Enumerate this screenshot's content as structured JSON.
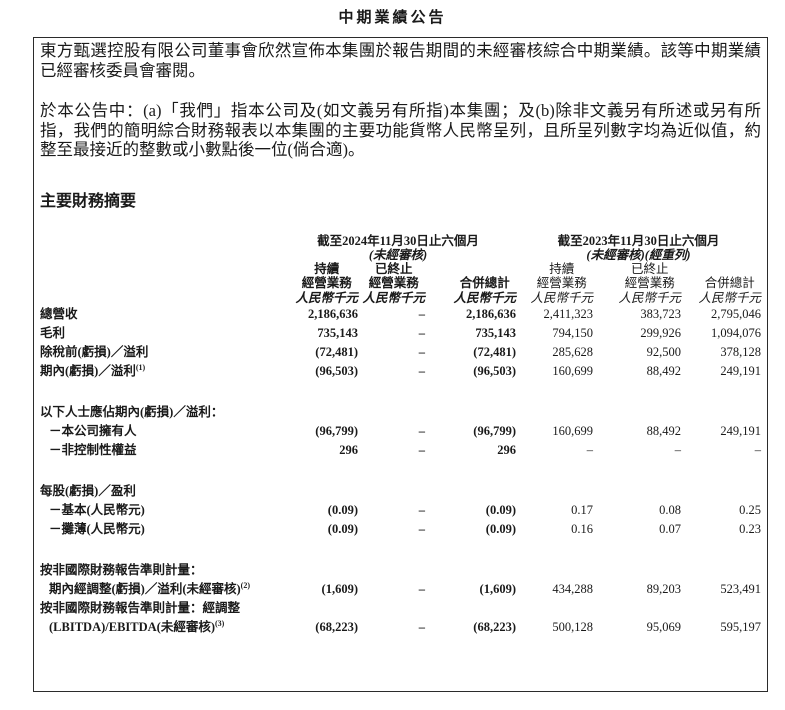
{
  "document": {
    "title": "中期業績公告",
    "paragraph1": "東方甄選控股有限公司董事會欣然宣佈本集團於報告期間的未經審核綜合中期業績。該等中期業績已經審核委員會審閱。",
    "paragraph2": "於本公告中：(a)「我們」指本公司及(如文義另有所指)本集團；及(b)除非文義另有所述或另有所指，我們的簡明綜合財務報表以本集團的主要功能貨幣人民幣呈列，且所呈列數字均為近似值，約整至最接近的整數或小數點後一位(倘合適)。",
    "section_heading": "主要財務摘要"
  },
  "table": {
    "period_groups": [
      {
        "title": "截至2024年11月30日止六個月",
        "subtitle": "(未經審核)"
      },
      {
        "title": "截至2023年11月30日止六個月",
        "subtitle": "(未經審核)(經重列)"
      }
    ],
    "columns": [
      {
        "line1": "持續",
        "line2": "經營業務",
        "unit": "人民幣千元"
      },
      {
        "line1": "已終止",
        "line2": "經營業務",
        "unit": "人民幣千元"
      },
      {
        "line1": "",
        "line2": "合併總計",
        "unit": "人民幣千元"
      },
      {
        "line1": "持續",
        "line2": "經營業務",
        "unit": "人民幣千元"
      },
      {
        "line1": "已終止",
        "line2": "經營業務",
        "unit": "人民幣千元"
      },
      {
        "line1": "",
        "line2": "合併總計",
        "unit": "人民幣千元"
      }
    ],
    "rows": [
      {
        "type": "data",
        "label": "總營收",
        "sup": "",
        "indent": 0,
        "values": [
          "2,186,636",
          "–",
          "2,186,636",
          "2,411,323",
          "383,723",
          "2,795,046"
        ]
      },
      {
        "type": "data",
        "label": "毛利",
        "sup": "",
        "indent": 0,
        "values": [
          "735,143",
          "–",
          "735,143",
          "794,150",
          "299,926",
          "1,094,076"
        ]
      },
      {
        "type": "data",
        "label": "除稅前(虧損)／溢利",
        "sup": "",
        "indent": 0,
        "values": [
          "(72,481)",
          "–",
          "(72,481)",
          "285,628",
          "92,500",
          "378,128"
        ]
      },
      {
        "type": "data",
        "label": "期內(虧損)／溢利",
        "sup": "(1)",
        "indent": 0,
        "values": [
          "(96,503)",
          "–",
          "(96,503)",
          "160,699",
          "88,492",
          "249,191"
        ]
      },
      {
        "type": "spacer"
      },
      {
        "type": "section",
        "label": "以下人士應佔期內(虧損)／溢利："
      },
      {
        "type": "data",
        "label": "－本公司擁有人",
        "sup": "",
        "indent": 1,
        "values": [
          "(96,799)",
          "–",
          "(96,799)",
          "160,699",
          "88,492",
          "249,191"
        ]
      },
      {
        "type": "data",
        "label": "－非控制性權益",
        "sup": "",
        "indent": 1,
        "values": [
          "296",
          "–",
          "296",
          "–",
          "–",
          "–"
        ]
      },
      {
        "type": "spacer"
      },
      {
        "type": "section",
        "label": "每股(虧損)／盈利"
      },
      {
        "type": "data",
        "label": "－基本(人民幣元)",
        "sup": "",
        "indent": 1,
        "values": [
          "(0.09)",
          "–",
          "(0.09)",
          "0.17",
          "0.08",
          "0.25"
        ]
      },
      {
        "type": "data",
        "label": "－攤薄(人民幣元)",
        "sup": "",
        "indent": 1,
        "values": [
          "(0.09)",
          "–",
          "(0.09)",
          "0.16",
          "0.07",
          "0.23"
        ]
      },
      {
        "type": "spacer"
      },
      {
        "type": "section",
        "label": "按非國際財務報告準則計量："
      },
      {
        "type": "data",
        "label": "期內經調整(虧損)／溢利(未經審核)",
        "sup": "(2)",
        "indent": 1,
        "values": [
          "(1,609)",
          "–",
          "(1,609)",
          "434,288",
          "89,203",
          "523,491"
        ]
      },
      {
        "type": "section",
        "label": "按非國際財務報告準則計量：經調整"
      },
      {
        "type": "data",
        "label": "(LBITDA)/EBITDA(未經審核)",
        "sup": "(3)",
        "indent": 1,
        "values": [
          "(68,223)",
          "–",
          "(68,223)",
          "500,128",
          "95,069",
          "595,197"
        ]
      }
    ]
  }
}
